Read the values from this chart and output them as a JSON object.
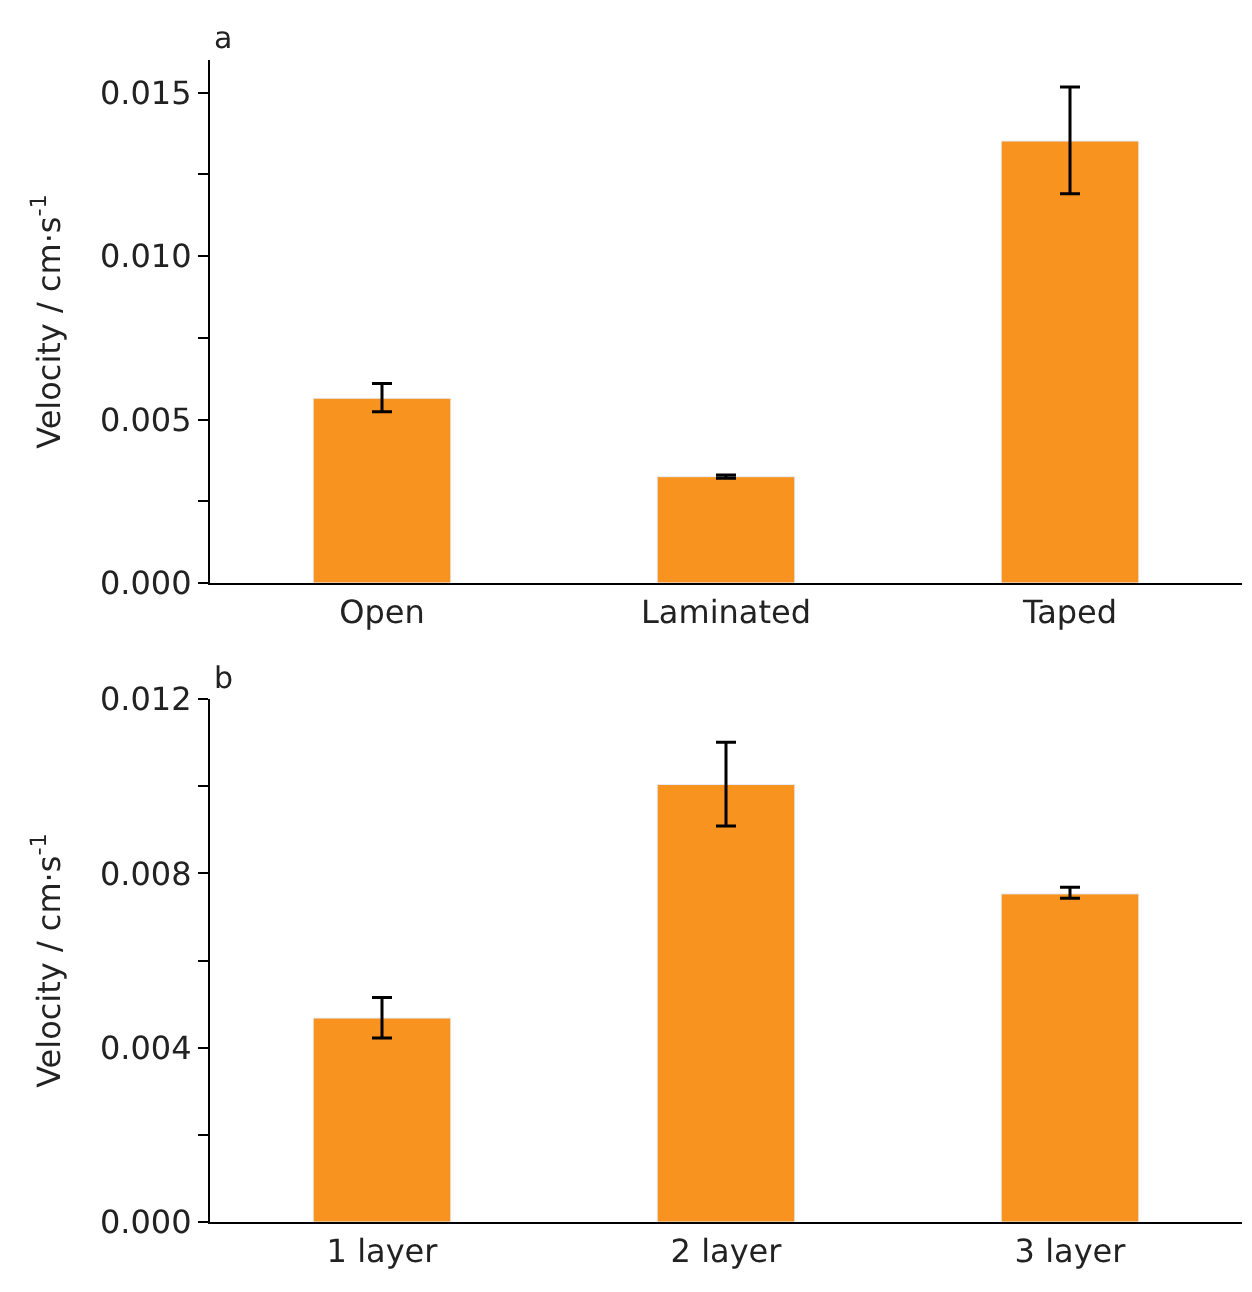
{
  "chart_data": [
    {
      "type": "bar",
      "annotations": [
        "a"
      ],
      "ylabel": "Velocity / cm·s$^{-1}$",
      "categories": [
        "Open",
        "Laminated",
        "Taped"
      ],
      "color": "#f7931e",
      "values": [
        0.00565,
        0.00325,
        0.01352
      ],
      "errors": [
        [
          0.00524,
          0.0061
        ],
        [
          0.0032,
          0.0033
        ],
        [
          0.01191,
          0.01517
        ]
      ],
      "ylim": [
        0,
        0.016
      ],
      "yticks": [
        {
          "value": 0,
          "label": "0.000"
        },
        {
          "value": 0.0025,
          "label": null
        },
        0.005,
        {
          "value": 0.0075,
          "label": null
        },
        {
          "value": 0.01,
          "label": "0.010"
        },
        {
          "value": 0.0125,
          "label": null
        },
        0.015
      ]
    },
    {
      "type": "bar",
      "annotations": [
        "b"
      ],
      "ylabel": "Velocity / cm·s$^{-1}$",
      "categories": [
        "1 layer",
        "2 layer",
        "3 layer"
      ],
      "color": "#f7931e",
      "values": [
        0.00468,
        0.01004,
        0.00753
      ],
      "errors": [
        [
          0.00422,
          0.00515
        ],
        [
          0.00909,
          0.01101
        ],
        [
          0.00743,
          0.00768
        ]
      ],
      "ylim": [
        0,
        0.012
      ],
      "yticks": [
        {
          "value": 0,
          "label": "0.000"
        },
        {
          "value": 0.002,
          "label": null
        },
        0.004,
        {
          "value": 0.006,
          "label": null
        },
        0.008,
        {
          "value": 0.01,
          "label": null
        },
        0.012
      ]
    }
  ]
}
